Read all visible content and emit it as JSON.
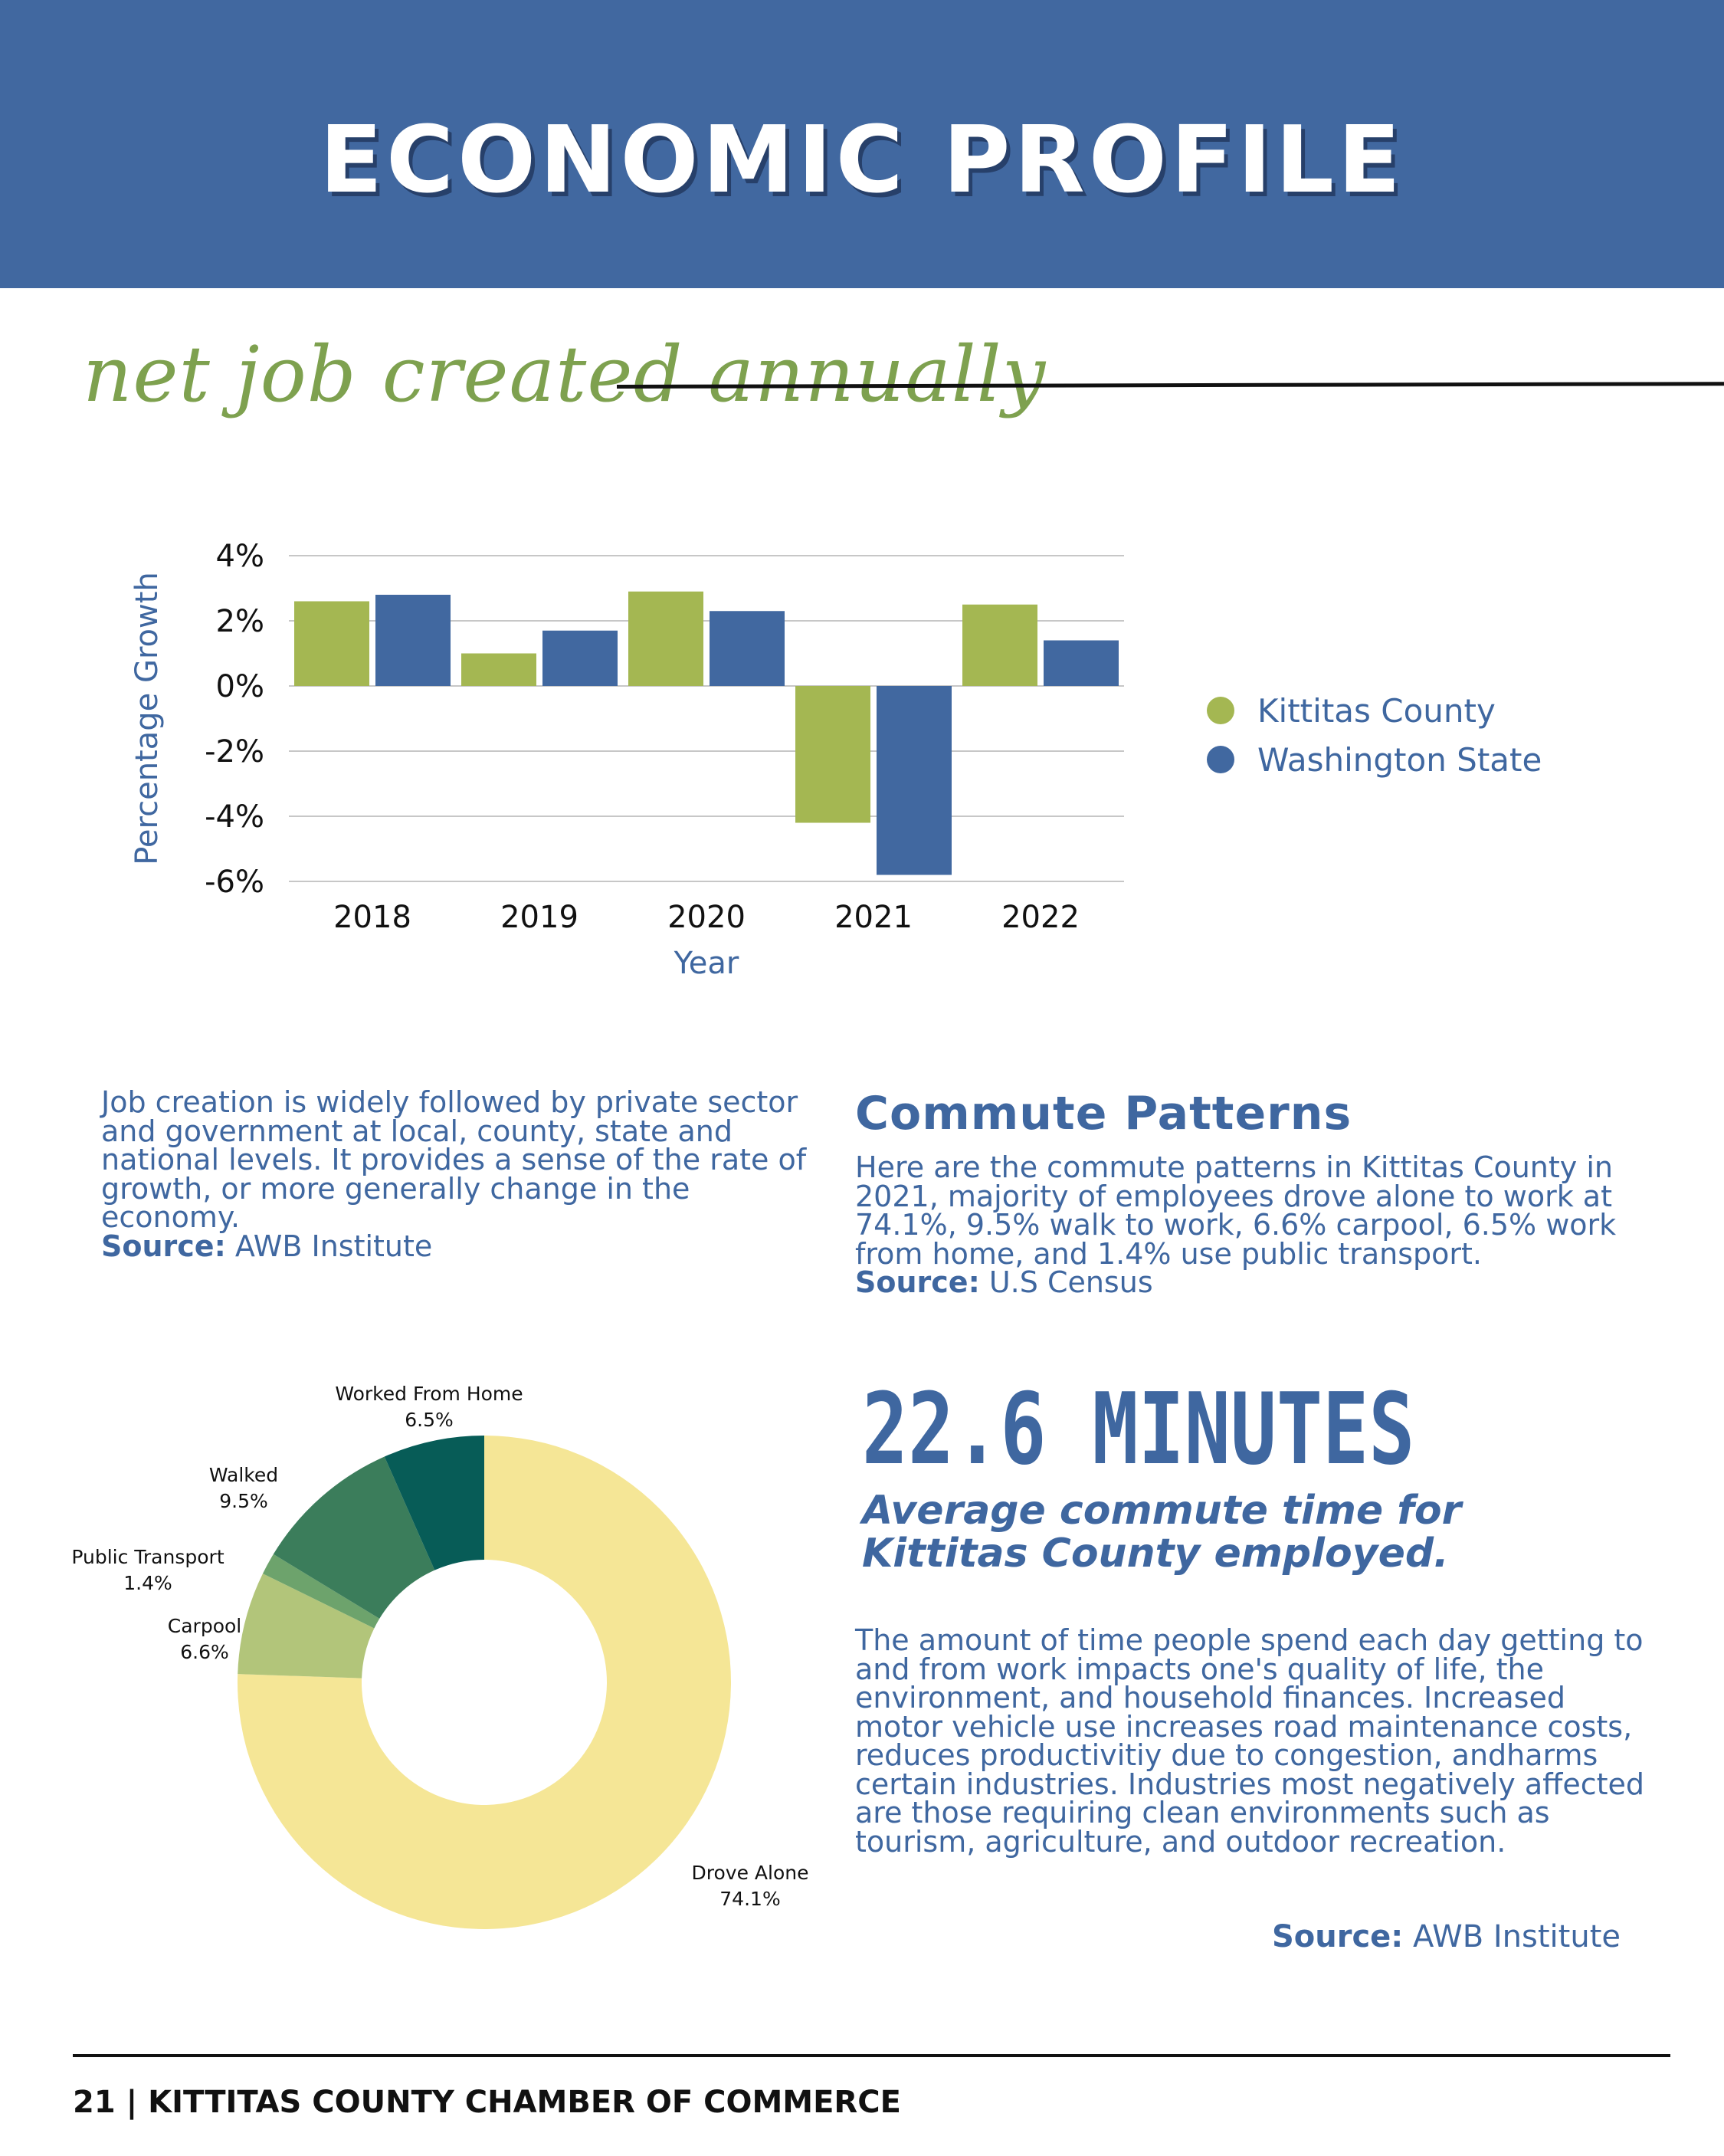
{
  "header": {
    "title": "ECONOMIC PROFILE"
  },
  "section_title": "net job created annually",
  "colors": {
    "header_blue": "#4168a0",
    "kittitas_green": "#a4b752",
    "washington_blue": "#4168a0",
    "text_blue": "#3f67a0"
  },
  "chart_data": [
    {
      "type": "bar",
      "xlabel": "Year",
      "ylabel": "Percentage Growth",
      "categories": [
        "2018",
        "2019",
        "2020",
        "2021",
        "2022"
      ],
      "series": [
        {
          "name": "Kittitas County",
          "color": "#a4b752",
          "values": [
            2.6,
            1.0,
            2.9,
            -4.2,
            2.5
          ]
        },
        {
          "name": "Washington State",
          "color": "#4168a0",
          "values": [
            2.8,
            1.7,
            2.3,
            -5.8,
            1.4
          ]
        }
      ],
      "ylim": [
        -6,
        4
      ],
      "yticks": [
        4,
        2,
        0,
        -2,
        -4,
        -6
      ],
      "ytick_labels": [
        "4%",
        "2%",
        "0%",
        "-2%",
        "-4%",
        "-6%"
      ],
      "grid": true,
      "legend_position": "right"
    },
    {
      "type": "pie",
      "donut": true,
      "slices": [
        {
          "label": "Drove Alone",
          "value": 74.1,
          "value_label": "74.1%",
          "color": "#f5e696"
        },
        {
          "label": "Carpool",
          "value": 6.6,
          "value_label": "6.6%",
          "color": "#b2c57a"
        },
        {
          "label": "Public Transport",
          "value": 1.4,
          "value_label": "1.4%",
          "color": "#6da36c"
        },
        {
          "label": "Walked",
          "value": 9.5,
          "value_label": "9.5%",
          "color": "#3b7d5b"
        },
        {
          "label": "Worked From Home",
          "value": 6.5,
          "value_label": "6.5%",
          "color": "#075c57"
        }
      ]
    }
  ],
  "job_paragraph": {
    "lines": [
      "Job creation is widely followed by private sector",
      "and government at local, county, state and",
      "national levels. It provides a sense of the rate of",
      "growth, or more generally change in the",
      "economy."
    ],
    "source_label": "Source:",
    "source_value": " AWB Institute"
  },
  "commute": {
    "heading": "Commute Patterns",
    "lines": [
      "Here are the commute patterns in Kittitas County in",
      "2021, majority of employees drove alone to work at",
      "74.1%, 9.5% walk to work, 6.6% carpool, 6.5% work",
      "from home, and 1.4% use public transport."
    ],
    "source_label": "Source:",
    "source_value": " U.S Census"
  },
  "commute_time": {
    "big_stat": "22.6 MINUTES",
    "subtitle_lines": [
      "Average commute time for",
      "Kittitas County employed."
    ],
    "lines": [
      "The amount of time people spend each day getting to",
      "and from work impacts one's quality of life, the",
      "environment, and household finances. Increased",
      "motor vehicle use increases road maintenance costs,",
      "reduces productivitiy due to congestion, andharms",
      "certain industries. Industries most negatively affected",
      "are those requiring clean environments such as",
      "tourism, agriculture, and outdoor recreation."
    ],
    "source_label": "Source:",
    "source_value": " AWB Institute"
  },
  "footer": {
    "text": "21 | KITTITAS COUNTY CHAMBER OF COMMERCE"
  }
}
